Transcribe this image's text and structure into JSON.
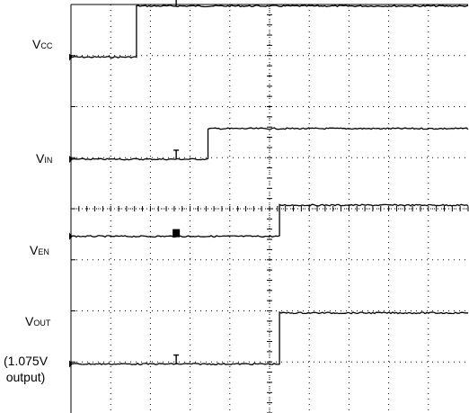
{
  "labels": {
    "vcc": {
      "main": "V",
      "sub": "CC"
    },
    "vin": {
      "main": "V",
      "sub": "IN"
    },
    "ven": {
      "main": "V",
      "sub": "EN"
    },
    "vout": {
      "main": "V",
      "sub": "OUT"
    }
  },
  "vout_note": {
    "line1": "(1.075V",
    "line2": "output)"
  },
  "chart_data": {
    "type": "line",
    "grid": true,
    "divisions": {
      "x": 10,
      "y": 8
    },
    "colors": {
      "trace": "#000000",
      "grid": "#000000",
      "background": "#ffffff"
    },
    "series": [
      {
        "name": "VCC",
        "x": [
          0,
          1.65,
          1.65,
          10
        ],
        "y": [
          6.97,
          6.97,
          7.97,
          7.97
        ]
      },
      {
        "name": "VIN",
        "x": [
          0,
          3.45,
          3.45,
          10
        ],
        "y": [
          4.97,
          4.97,
          5.57,
          5.57
        ]
      },
      {
        "name": "VEN",
        "x": [
          0,
          5.25,
          5.25,
          10
        ],
        "y": [
          3.46,
          3.46,
          4.07,
          4.07
        ]
      },
      {
        "name": "VOUT",
        "x": [
          0,
          5.25,
          5.25,
          10
        ],
        "y": [
          0.96,
          0.96,
          1.96,
          1.96
        ]
      }
    ],
    "trigger_markers": [
      {
        "series": "VCC",
        "x": 2.65,
        "glyph": "T"
      },
      {
        "series": "VIN",
        "x": 2.65,
        "glyph": "T"
      },
      {
        "series": "VEN",
        "x": 2.65,
        "glyph": "II"
      },
      {
        "series": "VOUT",
        "x": 2.65,
        "glyph": "T"
      }
    ]
  }
}
